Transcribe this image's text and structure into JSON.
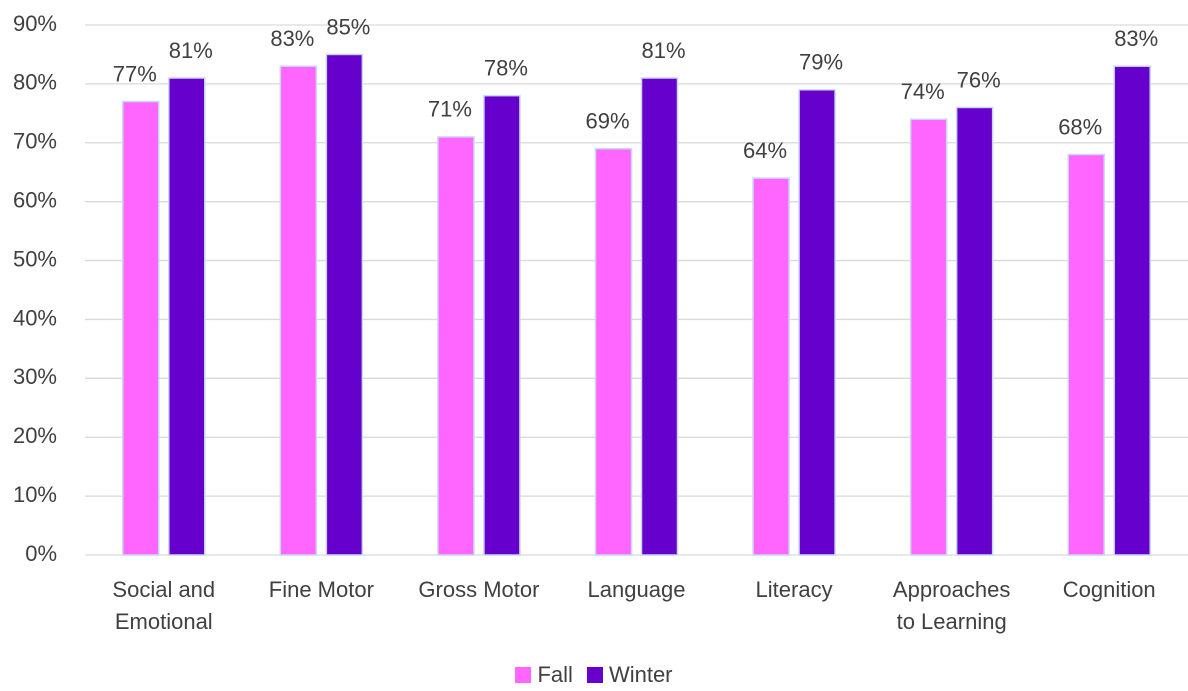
{
  "chart_data": {
    "type": "bar",
    "categories": [
      "Social and Emotional",
      "Fine Motor",
      "Gross Motor",
      "Language",
      "Literacy",
      "Approaches to Learning",
      "Cognition"
    ],
    "series": [
      {
        "name": "Fall",
        "color": "#ff66ff",
        "values": [
          77,
          83,
          71,
          69,
          64,
          74,
          68
        ],
        "value_labels": [
          "77%",
          "83%",
          "71%",
          "69%",
          "64%",
          "74%",
          "68%"
        ]
      },
      {
        "name": "Winter",
        "color": "#6600cc",
        "values": [
          81,
          85,
          78,
          81,
          79,
          76,
          83
        ],
        "value_labels": [
          "81%",
          "85%",
          "78%",
          "81%",
          "79%",
          "76%",
          "83%"
        ]
      }
    ],
    "ylim": [
      0,
      90
    ],
    "yticks": [
      {
        "value": 0,
        "label": "0%"
      },
      {
        "value": 10,
        "label": "10%"
      },
      {
        "value": 20,
        "label": "20%"
      },
      {
        "value": 30,
        "label": "30%"
      },
      {
        "value": 40,
        "label": "40%"
      },
      {
        "value": 50,
        "label": "50%"
      },
      {
        "value": 60,
        "label": "60%"
      },
      {
        "value": 70,
        "label": "70%"
      },
      {
        "value": 80,
        "label": "80%"
      },
      {
        "value": 90,
        "label": "90%"
      }
    ],
    "grid": true,
    "legend": "bottom"
  }
}
